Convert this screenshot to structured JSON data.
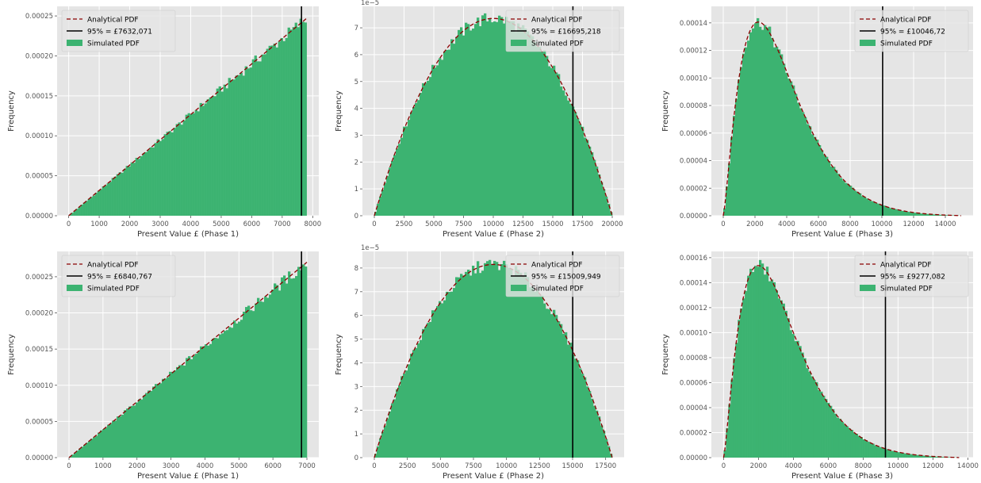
{
  "figure": {
    "layout": "2x3 grid of histograms",
    "background": "#ffffff"
  },
  "colors": {
    "panel_bg": "#e5e5e5",
    "grid": "#ffffff",
    "bars": "#3cb371",
    "analytical": "#8b0000",
    "threshold": "#000000",
    "tick_text": "#555555"
  },
  "chart_data": [
    {
      "type": "histogram+line",
      "title": "",
      "xlabel": "Present Value £ (Phase 1)",
      "ylabel": "Frequency",
      "offset_text": "",
      "shape": "linear",
      "dist_max": 7800,
      "peak": 0.000247,
      "xlim": [
        -380,
        8200
      ],
      "ylim": [
        0,
        0.000262
      ],
      "xticks": [
        0,
        1000,
        2000,
        3000,
        4000,
        5000,
        6000,
        7000,
        8000
      ],
      "xtick_labels": [
        "0",
        "1000",
        "2000",
        "3000",
        "4000",
        "5000",
        "6000",
        "7000",
        "8000"
      ],
      "yticks": [
        0,
        5e-05,
        0.0001,
        0.00015,
        0.0002,
        0.00025
      ],
      "ytick_labels": [
        "0.00000",
        "0.00005",
        "0.00010",
        "0.00015",
        "0.00020",
        "0.00025"
      ],
      "vline": 7632.071,
      "legend": {
        "position": "upper-left",
        "items": [
          "Analytical PDF",
          "95% = £7632,071",
          "Simulated PDF"
        ]
      }
    },
    {
      "type": "histogram+line",
      "title": "",
      "xlabel": "Present Value £ (Phase 2)",
      "ylabel": "Frequency",
      "offset_text": "1e−5",
      "shape": "parabolic",
      "dist_max": 20000,
      "peak": 7.35,
      "xlim": [
        -1000,
        21000
      ],
      "ylim": [
        0,
        7.8
      ],
      "xticks": [
        0,
        2500,
        5000,
        7500,
        10000,
        12500,
        15000,
        17500,
        20000
      ],
      "xtick_labels": [
        "0",
        "2500",
        "5000",
        "7500",
        "10000",
        "12500",
        "15000",
        "17500",
        "20000"
      ],
      "yticks": [
        0,
        1,
        2,
        3,
        4,
        5,
        6,
        7
      ],
      "ytick_labels": [
        "0",
        "1",
        "2",
        "3",
        "4",
        "5",
        "6",
        "7"
      ],
      "vline": 16695.218,
      "legend": {
        "position": "upper-right",
        "items": [
          "Analytical PDF",
          "95% = £16695,218",
          "Simulated PDF"
        ]
      }
    },
    {
      "type": "histogram+line",
      "title": "",
      "xlabel": "Present Value £ (Phase 3)",
      "ylabel": "Frequency",
      "offset_text": "",
      "shape": "skewed",
      "dist_max": 15000,
      "peak": 0.00014,
      "xlim": [
        -750,
        15750
      ],
      "ylim": [
        0,
        0.000152
      ],
      "xticks": [
        0,
        2000,
        4000,
        6000,
        8000,
        10000,
        12000,
        14000
      ],
      "xtick_labels": [
        "0",
        "2000",
        "4000",
        "6000",
        "8000",
        "10000",
        "12000",
        "14000"
      ],
      "yticks": [
        0,
        2e-05,
        4e-05,
        6e-05,
        8e-05,
        0.0001,
        0.00012,
        0.00014
      ],
      "ytick_labels": [
        "0.00000",
        "0.00002",
        "0.00004",
        "0.00006",
        "0.00008",
        "0.00010",
        "0.00012",
        "0.00014"
      ],
      "vline": 10046.72,
      "legend": {
        "position": "upper-right",
        "items": [
          "Analytical PDF",
          "95% = £10046,72",
          "Simulated PDF"
        ]
      }
    },
    {
      "type": "histogram+line",
      "title": "",
      "xlabel": "Present Value £ (Phase 1)",
      "ylabel": "Frequency",
      "offset_text": "",
      "shape": "linear",
      "dist_max": 7000,
      "peak": 0.00027,
      "xlim": [
        -350,
        7350
      ],
      "ylim": [
        0,
        0.000285
      ],
      "xticks": [
        0,
        1000,
        2000,
        3000,
        4000,
        5000,
        6000,
        7000
      ],
      "xtick_labels": [
        "0",
        "1000",
        "2000",
        "3000",
        "4000",
        "5000",
        "6000",
        "7000"
      ],
      "yticks": [
        0,
        5e-05,
        0.0001,
        0.00015,
        0.0002,
        0.00025
      ],
      "ytick_labels": [
        "0.00000",
        "0.00005",
        "0.00010",
        "0.00015",
        "0.00020",
        "0.00025"
      ],
      "vline": 6840.767,
      "legend": {
        "position": "upper-left",
        "items": [
          "Analytical PDF",
          "95% = £6840,767",
          "Simulated PDF"
        ]
      }
    },
    {
      "type": "histogram+line",
      "title": "",
      "xlabel": "Present Value £ (Phase 2)",
      "ylabel": "Frequency",
      "offset_text": "1e−5",
      "shape": "parabolic",
      "dist_max": 18000,
      "peak": 8.15,
      "xlim": [
        -900,
        18900
      ],
      "ylim": [
        0,
        8.7
      ],
      "xticks": [
        0,
        2500,
        5000,
        7500,
        10000,
        12500,
        15000,
        17500
      ],
      "xtick_labels": [
        "0",
        "2500",
        "5000",
        "7500",
        "10000",
        "12500",
        "15000",
        "17500"
      ],
      "yticks": [
        0,
        1,
        2,
        3,
        4,
        5,
        6,
        7,
        8
      ],
      "ytick_labels": [
        "0",
        "1",
        "2",
        "3",
        "4",
        "5",
        "6",
        "7",
        "8"
      ],
      "vline": 15009.949,
      "legend": {
        "position": "upper-right",
        "items": [
          "Analytical PDF",
          "95% = £15009,949",
          "Simulated PDF"
        ]
      }
    },
    {
      "type": "histogram+line",
      "title": "",
      "xlabel": "Present Value £ (Phase 3)",
      "ylabel": "Frequency",
      "offset_text": "",
      "shape": "skewed",
      "dist_max": 13500,
      "peak": 0.000153,
      "xlim": [
        -700,
        14300
      ],
      "ylim": [
        0,
        0.000165
      ],
      "xticks": [
        0,
        2000,
        4000,
        6000,
        8000,
        10000,
        12000,
        14000
      ],
      "xtick_labels": [
        "0",
        "2000",
        "4000",
        "6000",
        "8000",
        "10000",
        "12000",
        "14000"
      ],
      "yticks": [
        0,
        2e-05,
        4e-05,
        6e-05,
        8e-05,
        0.0001,
        0.00012,
        0.00014,
        0.00016
      ],
      "ytick_labels": [
        "0.00000",
        "0.00002",
        "0.00004",
        "0.00006",
        "0.00008",
        "0.00010",
        "0.00012",
        "0.00014",
        "0.00016"
      ],
      "vline": 9277.082,
      "legend": {
        "position": "upper-right",
        "items": [
          "Analytical PDF",
          "95% = £9277,082",
          "Simulated PDF"
        ]
      }
    }
  ]
}
